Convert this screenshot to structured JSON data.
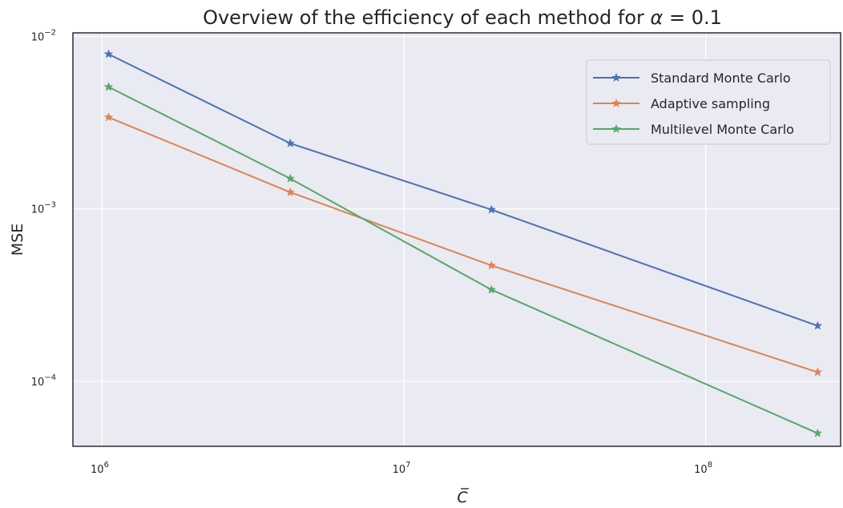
{
  "chart_data": {
    "type": "line",
    "title": "Overview of the efficiency of each method for α = 0.1",
    "xlabel": "C̅",
    "ylabel": "MSE",
    "xscale": "log",
    "yscale": "log",
    "xlim": [
      800000,
      280000000
    ],
    "ylim": [
      4.2e-05,
      0.0105
    ],
    "x_ticks": [
      {
        "value": 1000000,
        "base": "10",
        "exp": "6"
      },
      {
        "value": 10000000,
        "base": "10",
        "exp": "7"
      },
      {
        "value": 100000000,
        "base": "10",
        "exp": "8"
      }
    ],
    "y_ticks": [
      {
        "value": 0.01,
        "base": "10",
        "exp": "−2"
      },
      {
        "value": 0.001,
        "base": "10",
        "exp": "−3"
      },
      {
        "value": 0.0001,
        "base": "10",
        "exp": "−4"
      }
    ],
    "grid": true,
    "legend_position": "top-right",
    "marker": "star",
    "x": [
      1050000,
      4200000,
      19500000,
      235000000
    ],
    "series": [
      {
        "name": "Standard Monte Carlo",
        "color": "#4c72b0",
        "values": [
          0.0079,
          0.0024,
          0.00099,
          0.00021
        ]
      },
      {
        "name": "Adaptive sampling",
        "color": "#dd8452",
        "values": [
          0.0034,
          0.00125,
          0.00047,
          0.000113
        ]
      },
      {
        "name": "Multilevel Monte Carlo",
        "color": "#55a868",
        "values": [
          0.0051,
          0.0015,
          0.00034,
          5e-05
        ]
      }
    ]
  }
}
